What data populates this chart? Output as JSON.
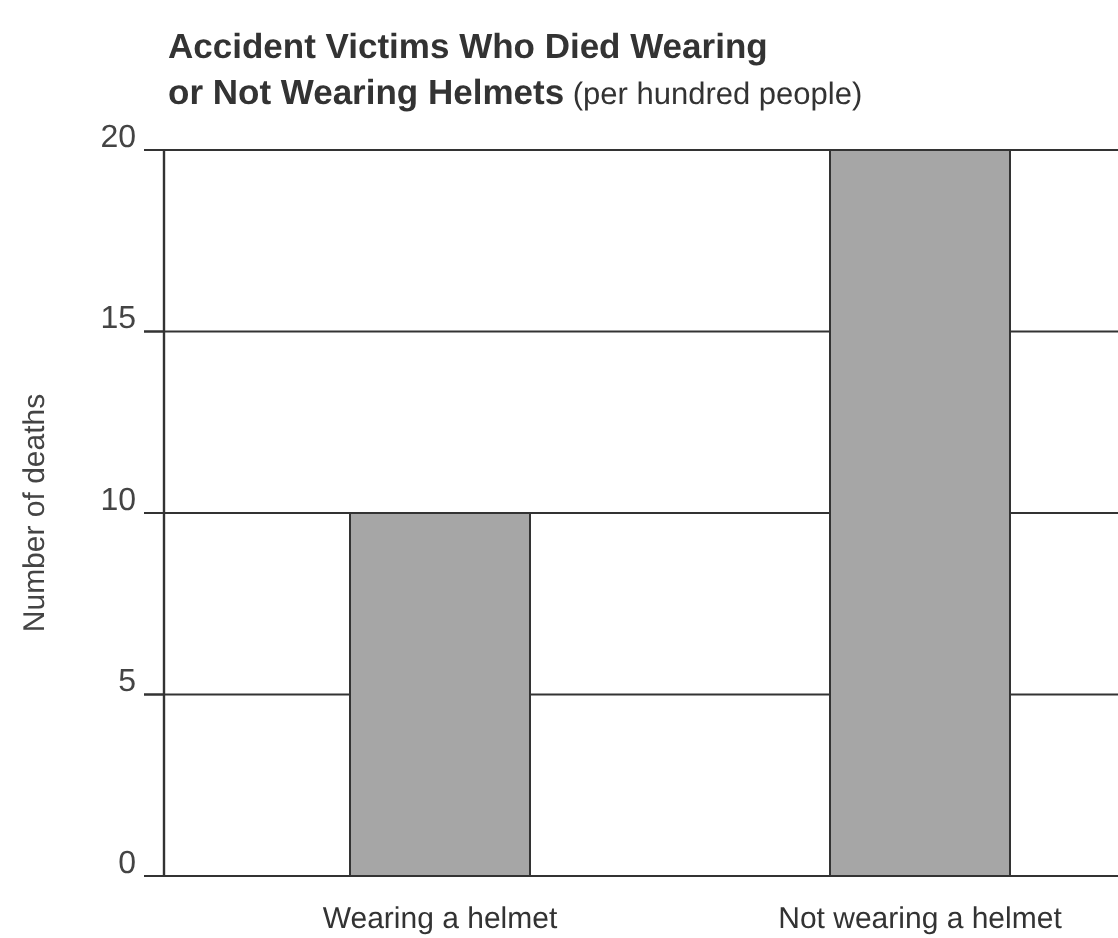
{
  "chart_data": {
    "type": "bar",
    "title": "Accident Victims Who Died Wearing or Not Wearing Helmets",
    "subtitle": "(per hundred people)",
    "ylabel": "Number of deaths",
    "categories": [
      "Wearing a helmet",
      "Not wearing a helmet"
    ],
    "values": [
      10,
      20
    ],
    "color": "#a6a6a6",
    "ylim": [
      0,
      20
    ],
    "yticks": [
      0,
      5,
      10,
      15,
      20
    ],
    "grid": "y"
  }
}
